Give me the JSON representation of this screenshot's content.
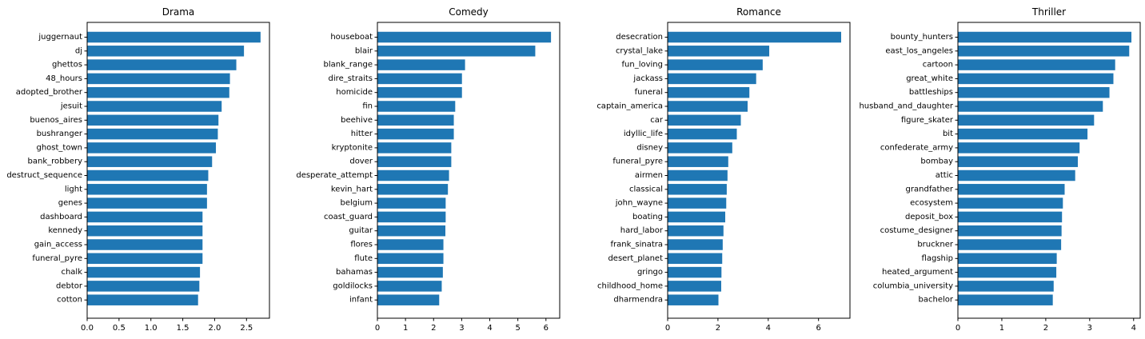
{
  "chart_data": [
    {
      "type": "bar",
      "orientation": "horizontal",
      "title": "Drama",
      "categories": [
        "juggernaut",
        "dj",
        "ghettos",
        "48_hours",
        "adopted_brother",
        "jesuit",
        "buenos_aires",
        "bushranger",
        "ghost_town",
        "bank_robbery",
        "destruct_sequence",
        "light",
        "genes",
        "dashboard",
        "kennedy",
        "gain_access",
        "funeral_pyre",
        "chalk",
        "debtor",
        "cotton"
      ],
      "values": [
        2.72,
        2.46,
        2.34,
        2.24,
        2.23,
        2.11,
        2.06,
        2.05,
        2.02,
        1.96,
        1.9,
        1.88,
        1.88,
        1.81,
        1.81,
        1.81,
        1.81,
        1.77,
        1.76,
        1.74
      ],
      "xlim": [
        0,
        2.86
      ],
      "xticks": [
        0,
        0.5,
        1,
        1.5,
        2,
        2.5
      ],
      "xtick_labels": [
        "0.0",
        "0.5",
        "1.0",
        "1.5",
        "2.0",
        "2.5"
      ],
      "color": "#1f77b4"
    },
    {
      "type": "bar",
      "orientation": "horizontal",
      "title": "Comedy",
      "categories": [
        "houseboat",
        "blair",
        "blank_range",
        "dire_straits",
        "homicide",
        "fin",
        "beehive",
        "hitter",
        "kryptonite",
        "dover",
        "desperate_attempt",
        "kevin_hart",
        "belgium",
        "coast_guard",
        "guitar",
        "flores",
        "flute",
        "bahamas",
        "goldilocks",
        "infant"
      ],
      "values": [
        6.18,
        5.62,
        3.12,
        3.01,
        3.01,
        2.77,
        2.72,
        2.72,
        2.63,
        2.63,
        2.55,
        2.51,
        2.43,
        2.43,
        2.42,
        2.35,
        2.35,
        2.33,
        2.29,
        2.2
      ],
      "xlim": [
        0,
        6.49
      ],
      "xticks": [
        0,
        1,
        2,
        3,
        4,
        5,
        6
      ],
      "xtick_labels": [
        "0",
        "1",
        "2",
        "3",
        "4",
        "5",
        "6"
      ],
      "color": "#1f77b4"
    },
    {
      "type": "bar",
      "orientation": "horizontal",
      "title": "Romance",
      "categories": [
        "desecration",
        "crystal_lake",
        "fun_loving",
        "jackass",
        "funeral",
        "captain_america",
        "car",
        "idyllic_life",
        "disney",
        "funeral_pyre",
        "airmen",
        "classical",
        "john_wayne",
        "boating",
        "hard_labor",
        "frank_sinatra",
        "desert_planet",
        "gringo",
        "childhood_home",
        "dharmendra"
      ],
      "values": [
        6.9,
        4.04,
        3.78,
        3.52,
        3.25,
        3.18,
        2.91,
        2.75,
        2.57,
        2.41,
        2.38,
        2.35,
        2.33,
        2.29,
        2.22,
        2.19,
        2.17,
        2.14,
        2.13,
        2.02
      ],
      "xlim": [
        0,
        7.25
      ],
      "xticks": [
        0,
        2,
        4,
        6
      ],
      "xtick_labels": [
        "0",
        "2",
        "4",
        "6"
      ],
      "color": "#1f77b4"
    },
    {
      "type": "bar",
      "orientation": "horizontal",
      "title": "Thriller",
      "categories": [
        "bounty_hunters",
        "east_los_angeles",
        "cartoon",
        "great_white",
        "battleships",
        "husband_and_daughter",
        "figure_skater",
        "bit",
        "confederate_army",
        "bombay",
        "attic",
        "grandfather",
        "ecosystem",
        "deposit_box",
        "costume_designer",
        "bruckner",
        "flagship",
        "heated_argument",
        "columbia_university",
        "bachelor"
      ],
      "values": [
        3.95,
        3.9,
        3.58,
        3.54,
        3.45,
        3.3,
        3.1,
        2.95,
        2.77,
        2.73,
        2.67,
        2.43,
        2.39,
        2.37,
        2.36,
        2.35,
        2.25,
        2.24,
        2.18,
        2.16
      ],
      "xlim": [
        0,
        4.15
      ],
      "xticks": [
        0,
        1,
        2,
        3,
        4
      ],
      "xtick_labels": [
        "0",
        "1",
        "2",
        "3",
        "4"
      ],
      "color": "#1f77b4"
    }
  ]
}
